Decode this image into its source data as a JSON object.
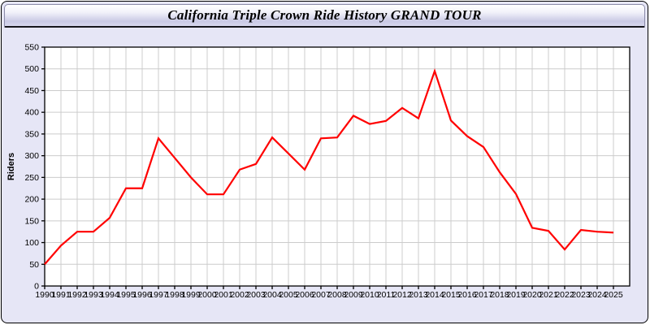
{
  "window": {
    "title": "California Triple Crown Ride History GRAND TOUR"
  },
  "chart_data": {
    "type": "line",
    "title": "California Triple Crown Ride History GRAND TOUR",
    "xlabel": "",
    "ylabel": "Riders",
    "ylim": [
      0,
      550
    ],
    "ytick_step": 50,
    "yticks": [
      0,
      50,
      100,
      150,
      200,
      250,
      300,
      350,
      400,
      450,
      500,
      550
    ],
    "grid": true,
    "legend": false,
    "x": [
      1990,
      1991,
      1992,
      1993,
      1994,
      1995,
      1996,
      1997,
      1998,
      1999,
      2000,
      2001,
      2002,
      2003,
      2004,
      2005,
      2006,
      2007,
      2008,
      2009,
      2010,
      2011,
      2012,
      2013,
      2014,
      2015,
      2016,
      2017,
      2018,
      2019,
      2020,
      2021,
      2022,
      2023,
      2024,
      2025
    ],
    "series": [
      {
        "name": "Riders",
        "color": "#ff0000",
        "values": [
          50,
          93,
          125,
          125,
          157,
          225,
          225,
          340,
          295,
          250,
          211,
          211,
          268,
          281,
          342,
          305,
          268,
          340,
          342,
          392,
          373,
          380,
          410,
          386,
          495,
          381,
          345,
          320,
          262,
          212,
          134,
          127,
          84,
          129,
          125,
          123
        ]
      }
    ],
    "colors": {
      "panel_bg": "#e6e6f6",
      "plot_bg": "#ffffff",
      "grid": "#cccccc",
      "axis": "#000000",
      "text": "#000000",
      "line": "#ff0000"
    }
  }
}
